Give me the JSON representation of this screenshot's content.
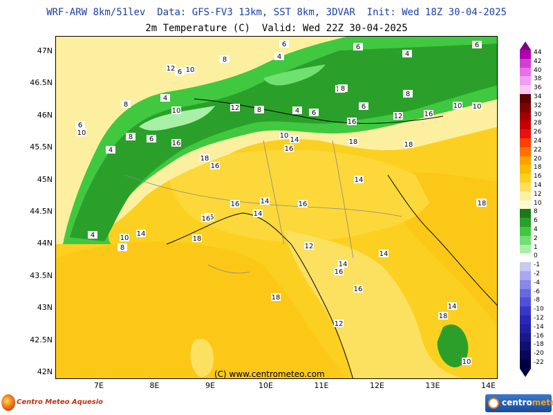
{
  "header": {
    "line1": "WRF-ARW 8km/51lev  Data: GFS-FV3 13km, SST 8km, 3DVAR  Init: Wed 18Z 30-04-2025",
    "line2": "2m Temperature (C)  Valid: Wed 22Z 30-04-2025"
  },
  "axes": {
    "lat_labels": [
      "47N",
      "46.5N",
      "46N",
      "45.5N",
      "45N",
      "44.5N",
      "44N",
      "43.5N",
      "43N",
      "42.5N",
      "42N"
    ],
    "lon_labels": [
      "7E",
      "8E",
      "9E",
      "10E",
      "11E",
      "12E",
      "13E",
      "14E"
    ]
  },
  "credit": "(C) www.centrometeo.com",
  "logos": {
    "left_text": "Centro Meteo Aquesio",
    "right_text_a": "centro",
    "right_text_b": "meteo"
  },
  "legend": {
    "labels": [
      "44",
      "42",
      "40",
      "38",
      "36",
      "34",
      "32",
      "30",
      "28",
      "26",
      "24",
      "22",
      "20",
      "18",
      "16",
      "14",
      "12",
      "10",
      "8",
      "6",
      "4",
      "2",
      "1",
      "0",
      "-1",
      "-2",
      "-4",
      "-6",
      "-8",
      "-10",
      "-12",
      "-14",
      "-16",
      "-18",
      "-20",
      "-22"
    ],
    "colors": [
      "#b000b0",
      "#d040d0",
      "#e870e8",
      "#f0a0f0",
      "#f8c8f8",
      "#5a0000",
      "#800000",
      "#a00000",
      "#c80000",
      "#e81010",
      "#ff4000",
      "#ff7000",
      "#ffa000",
      "#f8bc00",
      "#fcd020",
      "#fce060",
      "#fcf0a0",
      "#fcfcd0",
      "#1a7a1a",
      "#2aa02a",
      "#40c840",
      "#70e070",
      "#a8f0a8",
      "#ffffff",
      "#c8c8f0",
      "#a8a8f0",
      "#8888e8",
      "#6868e0",
      "#5050d8",
      "#3838c8",
      "#2828b8",
      "#2020a0",
      "#181888",
      "#101070",
      "#080858",
      "#000040"
    ],
    "top_color": "#800080",
    "bottom_color": "#000040"
  },
  "map_labels": [
    {
      "text": "6"
    },
    {
      "text": "6"
    },
    {
      "text": "6"
    },
    {
      "text": "4"
    },
    {
      "text": "4"
    },
    {
      "text": "8"
    },
    {
      "text": "12"
    },
    {
      "text": "6"
    },
    {
      "text": "10"
    },
    {
      "text": "4"
    },
    {
      "text": "8"
    },
    {
      "text": "10"
    },
    {
      "text": "12"
    },
    {
      "text": "8"
    },
    {
      "text": "4"
    },
    {
      "text": "6"
    },
    {
      "text": "12"
    },
    {
      "text": "8"
    },
    {
      "text": "6"
    },
    {
      "text": "8"
    },
    {
      "text": "12"
    },
    {
      "text": "16"
    },
    {
      "text": "10"
    },
    {
      "text": "10"
    },
    {
      "text": "6"
    },
    {
      "text": "8"
    },
    {
      "text": "6"
    },
    {
      "text": "10"
    },
    {
      "text": "4"
    },
    {
      "text": "16"
    },
    {
      "text": "10"
    },
    {
      "text": "14"
    },
    {
      "text": "16"
    },
    {
      "text": "18"
    },
    {
      "text": "18"
    },
    {
      "text": "16"
    },
    {
      "text": "16"
    },
    {
      "text": "18"
    },
    {
      "text": "16"
    },
    {
      "text": "14"
    },
    {
      "text": "16"
    },
    {
      "text": "14"
    },
    {
      "text": "14"
    },
    {
      "text": "16"
    },
    {
      "text": "16"
    },
    {
      "text": "16"
    },
    {
      "text": "16"
    },
    {
      "text": "18"
    },
    {
      "text": "4"
    },
    {
      "text": "10"
    },
    {
      "text": "14"
    },
    {
      "text": "8"
    },
    {
      "text": "18"
    },
    {
      "text": "12"
    },
    {
      "text": "14"
    },
    {
      "text": "14"
    },
    {
      "text": "16"
    },
    {
      "text": "18"
    },
    {
      "text": "14"
    },
    {
      "text": "12"
    },
    {
      "text": "10"
    },
    {
      "text": "18"
    },
    {
      "text": "18"
    }
  ]
}
